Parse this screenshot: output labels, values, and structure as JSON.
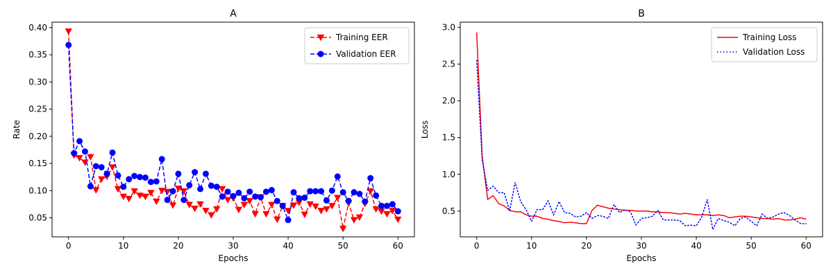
{
  "chart_data": [
    {
      "type": "line",
      "title": "A",
      "xlabel": "Epochs",
      "ylabel": "Rate",
      "xlim": [
        -3,
        63
      ],
      "ylim": [
        0.015,
        0.41
      ],
      "xticks": [
        0,
        10,
        20,
        30,
        40,
        50,
        60
      ],
      "yticks": [
        0.05,
        0.1,
        0.15,
        0.2,
        0.25,
        0.3,
        0.35,
        0.4
      ],
      "ytick_labels": [
        "0.05",
        "0.10",
        "0.15",
        "0.20",
        "0.25",
        "0.30",
        "0.35",
        "0.40"
      ],
      "legend_position": "top-right",
      "x": [
        0,
        1,
        2,
        3,
        4,
        5,
        6,
        7,
        8,
        9,
        10,
        11,
        12,
        13,
        14,
        15,
        16,
        17,
        18,
        19,
        20,
        21,
        22,
        23,
        24,
        25,
        26,
        27,
        28,
        29,
        30,
        31,
        32,
        33,
        34,
        35,
        36,
        37,
        38,
        39,
        40,
        41,
        42,
        43,
        44,
        45,
        46,
        47,
        48,
        49,
        50,
        51,
        52,
        53,
        54,
        55,
        56,
        57,
        58,
        59,
        60
      ],
      "series": [
        {
          "name": "Training EER",
          "color": "#ff0000",
          "line_style": "dashed",
          "marker": "triangle-down",
          "values": [
            0.393,
            0.165,
            0.16,
            0.152,
            0.162,
            0.101,
            0.121,
            0.126,
            0.143,
            0.103,
            0.089,
            0.085,
            0.099,
            0.091,
            0.089,
            0.096,
            0.08,
            0.1,
            0.098,
            0.073,
            0.104,
            0.099,
            0.074,
            0.067,
            0.075,
            0.063,
            0.055,
            0.066,
            0.103,
            0.083,
            0.086,
            0.065,
            0.074,
            0.081,
            0.057,
            0.088,
            0.057,
            0.074,
            0.047,
            0.072,
            0.063,
            0.073,
            0.078,
            0.056,
            0.075,
            0.071,
            0.063,
            0.066,
            0.072,
            0.087,
            0.03,
            0.077,
            0.046,
            0.051,
            0.076,
            0.099,
            0.066,
            0.062,
            0.057,
            0.063,
            0.047
          ]
        },
        {
          "name": "Validation EER",
          "color": "#0000ff",
          "line_style": "dashed",
          "marker": "circle",
          "values": [
            0.368,
            0.169,
            0.191,
            0.172,
            0.108,
            0.145,
            0.143,
            0.131,
            0.17,
            0.128,
            0.107,
            0.121,
            0.127,
            0.125,
            0.124,
            0.116,
            0.117,
            0.158,
            0.083,
            0.099,
            0.131,
            0.083,
            0.11,
            0.134,
            0.103,
            0.131,
            0.109,
            0.107,
            0.089,
            0.098,
            0.09,
            0.096,
            0.086,
            0.098,
            0.089,
            0.088,
            0.098,
            0.101,
            0.081,
            0.072,
            0.046,
            0.097,
            0.086,
            0.087,
            0.099,
            0.099,
            0.099,
            0.082,
            0.1,
            0.126,
            0.097,
            0.081,
            0.097,
            0.094,
            0.08,
            0.123,
            0.091,
            0.072,
            0.072,
            0.075,
            0.062
          ]
        }
      ]
    },
    {
      "type": "line",
      "title": "B",
      "xlabel": "Epochs",
      "ylabel": "Loss",
      "xlim": [
        -3,
        63
      ],
      "ylim": [
        0.15,
        3.07
      ],
      "xticks": [
        0,
        10,
        20,
        30,
        40,
        50,
        60
      ],
      "yticks": [
        0.5,
        1.0,
        1.5,
        2.0,
        2.5,
        3.0
      ],
      "ytick_labels": [
        "0.5",
        "1.0",
        "1.5",
        "2.0",
        "2.5",
        "3.0"
      ],
      "legend_position": "top-right",
      "x": [
        0,
        1,
        2,
        3,
        4,
        5,
        6,
        7,
        8,
        9,
        10,
        11,
        12,
        13,
        14,
        15,
        16,
        17,
        18,
        19,
        20,
        21,
        22,
        23,
        24,
        25,
        26,
        27,
        28,
        29,
        30,
        31,
        32,
        33,
        34,
        35,
        36,
        37,
        38,
        39,
        40,
        41,
        42,
        43,
        44,
        45,
        46,
        47,
        48,
        49,
        50,
        51,
        52,
        53,
        54,
        55,
        56,
        57,
        58,
        59,
        60
      ],
      "series": [
        {
          "name": "Training Loss",
          "color": "#ff0000",
          "line_style": "solid",
          "values": [
            2.93,
            1.25,
            0.66,
            0.71,
            0.6,
            0.57,
            0.51,
            0.49,
            0.49,
            0.45,
            0.43,
            0.43,
            0.4,
            0.39,
            0.37,
            0.36,
            0.34,
            0.35,
            0.34,
            0.33,
            0.33,
            0.51,
            0.58,
            0.56,
            0.54,
            0.53,
            0.52,
            0.51,
            0.51,
            0.5,
            0.5,
            0.5,
            0.49,
            0.49,
            0.48,
            0.48,
            0.47,
            0.46,
            0.47,
            0.46,
            0.45,
            0.45,
            0.45,
            0.44,
            0.45,
            0.44,
            0.41,
            0.42,
            0.43,
            0.43,
            0.42,
            0.41,
            0.4,
            0.4,
            0.39,
            0.4,
            0.38,
            0.38,
            0.39,
            0.41,
            0.39
          ]
        },
        {
          "name": "Validation Loss",
          "color": "#0000ff",
          "line_style": "dotted",
          "values": [
            2.55,
            1.2,
            0.78,
            0.84,
            0.75,
            0.75,
            0.5,
            0.89,
            0.63,
            0.52,
            0.36,
            0.52,
            0.52,
            0.64,
            0.45,
            0.63,
            0.48,
            0.47,
            0.42,
            0.43,
            0.48,
            0.4,
            0.44,
            0.43,
            0.4,
            0.59,
            0.48,
            0.52,
            0.49,
            0.31,
            0.4,
            0.41,
            0.43,
            0.51,
            0.38,
            0.38,
            0.38,
            0.37,
            0.3,
            0.31,
            0.3,
            0.42,
            0.66,
            0.25,
            0.4,
            0.37,
            0.35,
            0.3,
            0.4,
            0.42,
            0.36,
            0.3,
            0.46,
            0.4,
            0.42,
            0.46,
            0.48,
            0.44,
            0.38,
            0.33,
            0.33
          ]
        }
      ]
    }
  ]
}
